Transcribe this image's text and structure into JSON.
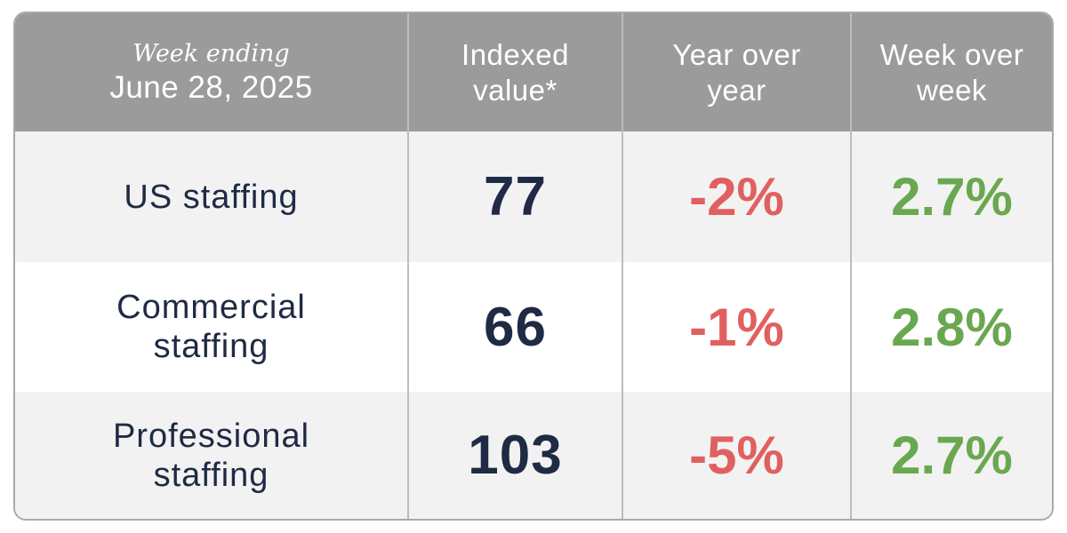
{
  "chart_data": {
    "type": "table",
    "header": {
      "week_label": "Week ending",
      "date": "June 28, 2025",
      "columns": [
        {
          "line1": "Indexed",
          "line2": "value*"
        },
        {
          "line1": "Year over",
          "line2": "year"
        },
        {
          "line1": "Week over",
          "line2": "week"
        }
      ]
    },
    "rows": [
      {
        "label_line1": "US staffing",
        "label_line2": "",
        "indexed_value": "77",
        "year_over_year": "-2%",
        "week_over_week": "2.7%"
      },
      {
        "label_line1": "Commercial",
        "label_line2": "staffing",
        "indexed_value": "66",
        "year_over_year": "-1%",
        "week_over_week": "2.8%"
      },
      {
        "label_line1": "Professional",
        "label_line2": "staffing",
        "indexed_value": "103",
        "year_over_year": "-5%",
        "week_over_week": "2.7%"
      }
    ],
    "colors": {
      "header_background": "#9b9b9b",
      "label_text": "#1f2a44",
      "negative": "#e06060",
      "positive": "#6aa84f"
    }
  }
}
